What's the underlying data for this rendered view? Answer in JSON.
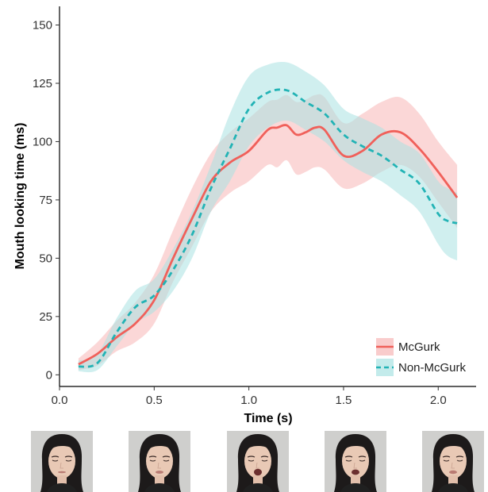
{
  "chart_data": {
    "type": "line",
    "xlabel": "Time (s)",
    "ylabel": "Mouth looking time (ms)",
    "xlim": [
      0.0,
      2.2
    ],
    "ylim": [
      -5,
      158
    ],
    "x_ticks": [
      0.0,
      0.5,
      1.0,
      1.5,
      2.0
    ],
    "x_tick_labels": [
      "0.0",
      "0.5",
      "1.0",
      "1.5",
      "2.0"
    ],
    "y_ticks": [
      0,
      25,
      50,
      75,
      100,
      125,
      150
    ],
    "y_tick_labels": [
      "0",
      "25",
      "50",
      "75",
      "100",
      "125",
      "150"
    ],
    "grid": false,
    "legend_position": "bottom-right",
    "series": [
      {
        "name": "McGurk",
        "color": "#f0605a",
        "band_color": "#f7b6b6",
        "line_style": "solid",
        "x": [
          0.1,
          0.2,
          0.3,
          0.4,
          0.5,
          0.6,
          0.7,
          0.8,
          0.9,
          1.0,
          1.1,
          1.15,
          1.2,
          1.25,
          1.3,
          1.35,
          1.4,
          1.5,
          1.6,
          1.7,
          1.8,
          1.9,
          2.0,
          2.1
        ],
        "values": [
          4.5,
          9,
          16,
          22,
          32,
          50,
          67,
          83,
          91,
          96,
          105,
          106,
          107,
          103,
          104,
          106,
          105,
          94,
          96,
          103,
          104,
          97,
          87,
          76
        ],
        "lower": [
          2,
          4,
          10,
          14,
          22,
          40,
          55,
          70,
          78,
          83,
          90,
          89,
          92,
          86,
          87,
          89,
          88,
          80,
          82,
          87,
          90,
          85,
          74,
          63
        ],
        "upper": [
          7,
          14,
          23,
          31,
          43,
          62,
          80,
          95,
          104,
          110,
          117,
          118,
          120,
          117,
          118,
          120,
          119,
          108,
          112,
          117,
          119,
          112,
          100,
          90
        ]
      },
      {
        "name": "Non-McGurk",
        "color": "#22b3b5",
        "band_color": "#a9e2e2",
        "line_style": "dashed",
        "x": [
          0.1,
          0.2,
          0.3,
          0.4,
          0.5,
          0.6,
          0.7,
          0.8,
          0.9,
          1.0,
          1.1,
          1.2,
          1.3,
          1.4,
          1.5,
          1.6,
          1.7,
          1.8,
          1.9,
          2.0,
          2.05,
          2.1
        ],
        "values": [
          3.5,
          5,
          18,
          29,
          34,
          45,
          60,
          80,
          97,
          114,
          121,
          122,
          117,
          112,
          103,
          98,
          94,
          88,
          82,
          69,
          66,
          65
        ],
        "lower": [
          1.5,
          2,
          12,
          22,
          27,
          36,
          50,
          70,
          83,
          98,
          106,
          109,
          105,
          100,
          92,
          87,
          83,
          77,
          70,
          56,
          51,
          49
        ],
        "upper": [
          6,
          9,
          24,
          36,
          41,
          54,
          70,
          90,
          112,
          128,
          133,
          134,
          130,
          124,
          114,
          110,
          106,
          100,
          95,
          83,
          80,
          78
        ]
      }
    ]
  },
  "stimulus_frames": {
    "count": 5,
    "description": [
      "face-frame-1",
      "face-frame-2",
      "face-frame-3",
      "face-frame-4",
      "face-frame-5"
    ],
    "mouth_open": [
      0.05,
      0.15,
      0.55,
      0.4,
      0.2
    ]
  }
}
